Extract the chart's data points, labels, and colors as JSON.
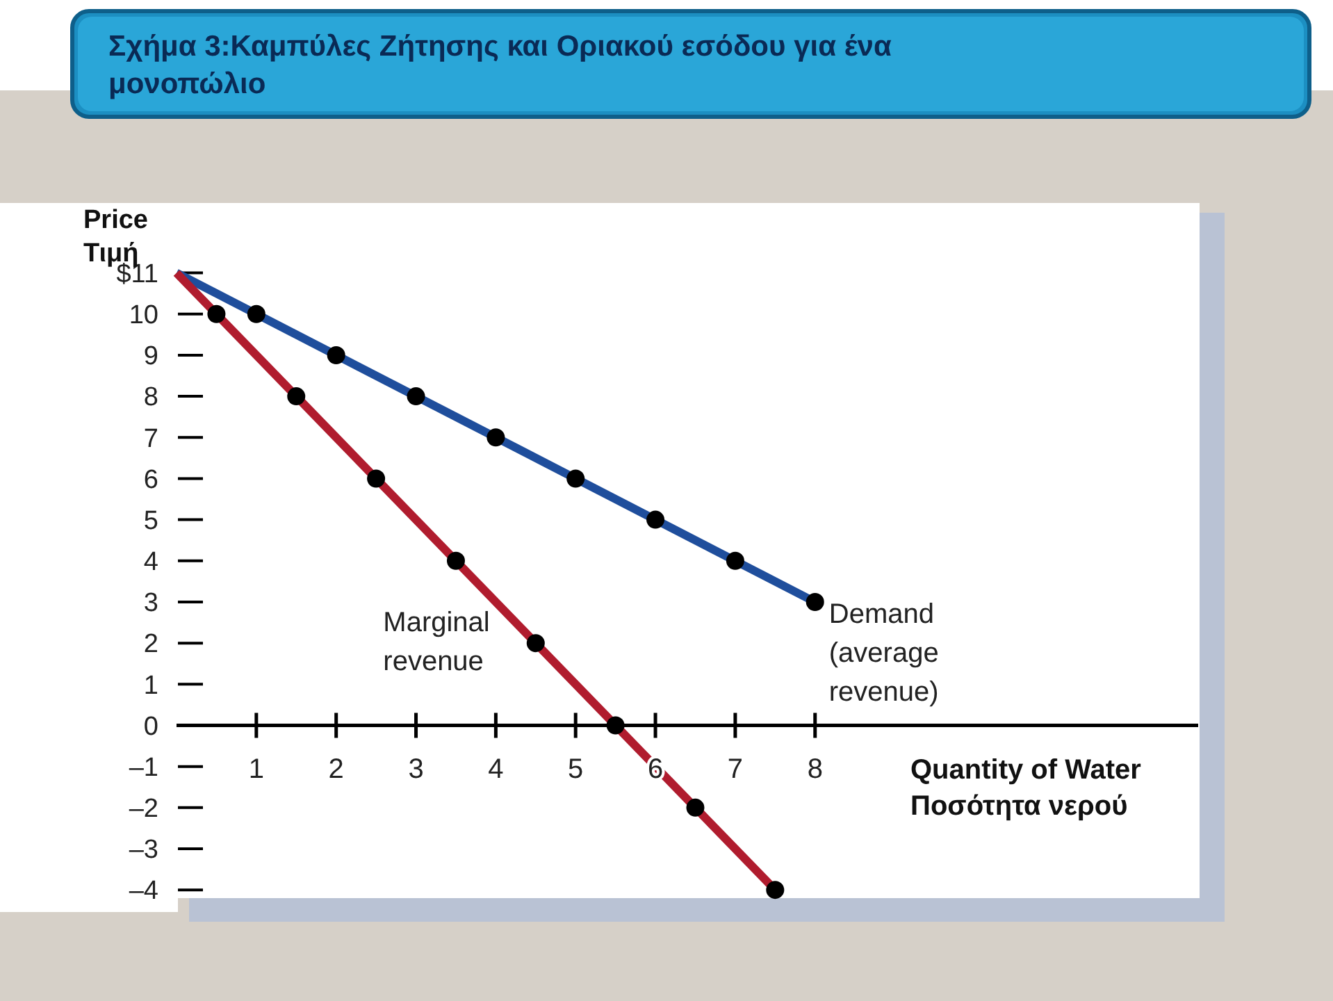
{
  "chart_data": {
    "type": "line",
    "title": "Σχήμα 3:Καμπύλες Ζήτησης και Οριακού εσόδου για ένα μονοπώλιο",
    "ylabel": "Price\nΤιμή",
    "xlabel": "Quantity of Water\nΠοσότητα νερού",
    "series": [
      {
        "name": "Demand (average revenue)",
        "color": "#1f4e9c",
        "x": [
          0,
          8
        ],
        "values": [
          11,
          3
        ]
      },
      {
        "name": "Marginal revenue",
        "color": "#b01c2e",
        "x": [
          0,
          7.5
        ],
        "values": [
          11,
          -4
        ]
      },
      {
        "type": "scatter",
        "color": "#000000",
        "marker": "circle",
        "x": [
          1,
          2,
          3,
          4,
          5,
          6,
          7,
          8
        ],
        "values": [
          10,
          9,
          8,
          7,
          6,
          5,
          4,
          3
        ]
      },
      {
        "type": "scatter",
        "color": "#000000",
        "marker": "circle",
        "x": [
          0.5,
          1.5,
          2.5,
          3.5,
          4.5,
          5.5,
          6.5,
          7.5
        ],
        "values": [
          10,
          8,
          6,
          4,
          2,
          0,
          -2,
          -4
        ]
      }
    ],
    "xlim": [
      0,
      12.8
    ],
    "xticks": [
      1,
      2,
      3,
      4,
      5,
      6,
      7,
      8
    ],
    "ylim": [
      -4.2,
      12.7
    ],
    "yticks": [
      {
        "value": 11,
        "label": "$11"
      },
      10,
      9,
      8,
      7,
      6,
      5,
      4,
      3,
      2,
      1,
      0,
      {
        "value": -1,
        "label": "–1"
      },
      {
        "value": -2,
        "label": "–2"
      },
      {
        "value": -3,
        "label": "–3"
      },
      {
        "value": -4,
        "label": "–4"
      }
    ],
    "grid": false,
    "legend": false
  }
}
